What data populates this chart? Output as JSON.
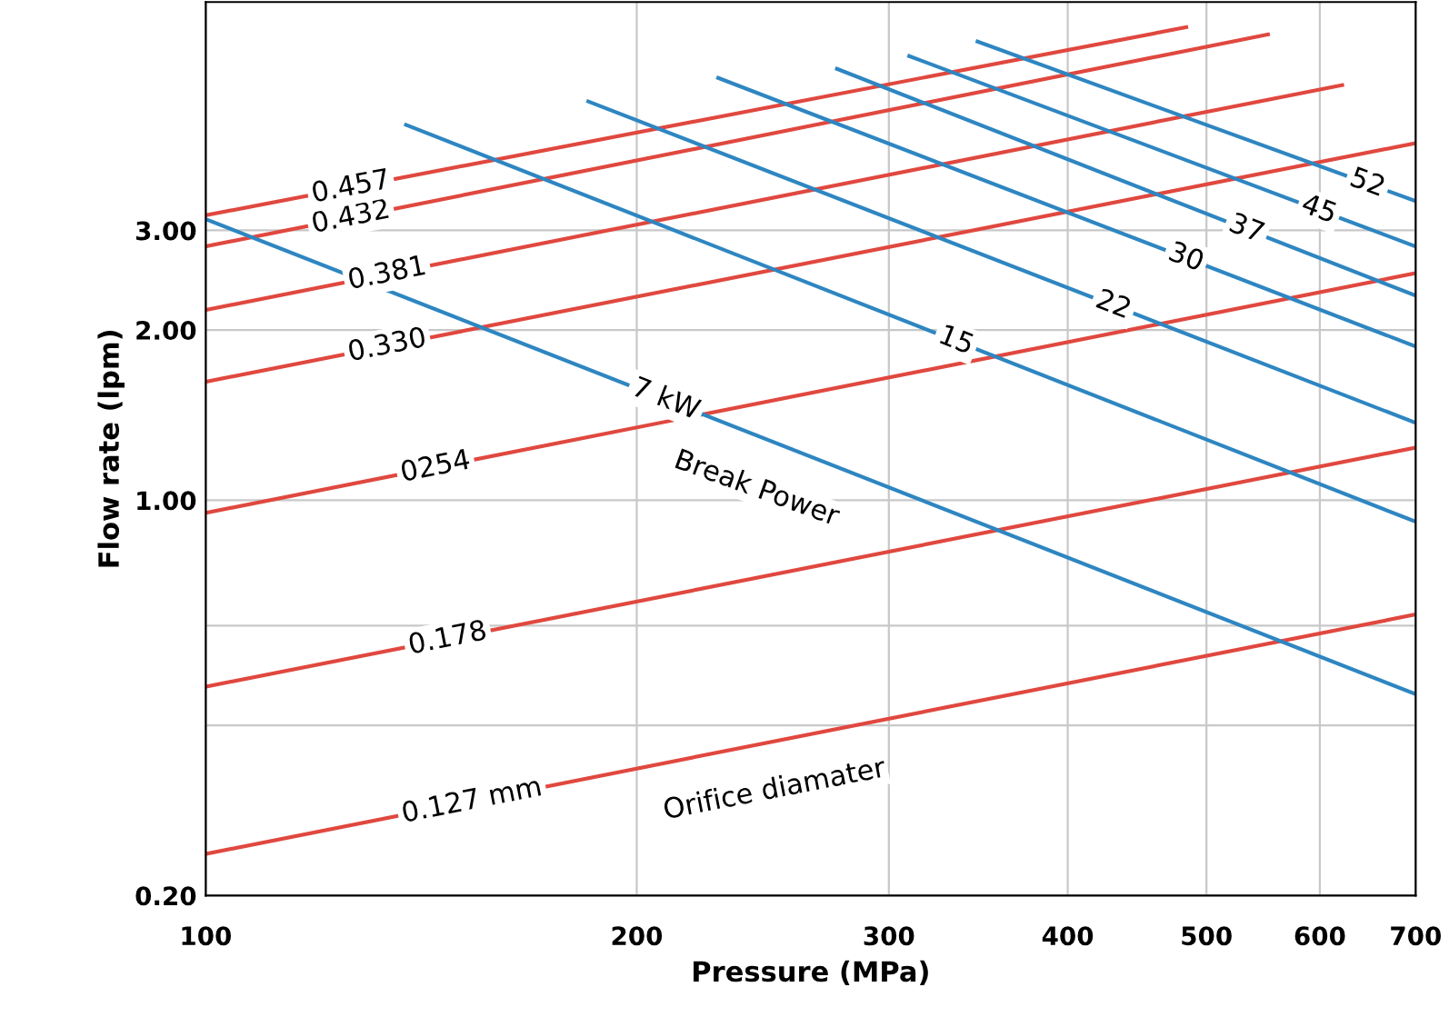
{
  "chart_data": {
    "type": "line",
    "xlabel": "Pressure (MPa)",
    "ylabel": "Flow rate (lpm)",
    "log": "xy",
    "xlim": [
      100,
      700
    ],
    "ylim": [
      0.2,
      7.6
    ],
    "xticks": [
      100,
      200,
      300,
      400,
      500,
      600,
      700
    ],
    "yticks": [
      {
        "value": 0.2,
        "label": "0.20"
      },
      {
        "value": 0.4,
        "label": null
      },
      {
        "value": 0.6,
        "label": null
      },
      {
        "value": 1,
        "label": "1.00"
      },
      {
        "value": 2,
        "label": "2.00"
      },
      {
        "value": 3,
        "label": "3.00"
      }
    ],
    "grid": true,
    "legend": false,
    "marker": "none",
    "line_style": "solid",
    "series": [
      {
        "name": "0.127 mm",
        "color": "#e0483f",
        "x": [
          100,
          700
        ],
        "values": [
          0.237,
          0.628
        ]
      },
      {
        "name": "0.178",
        "color": "#e0483f",
        "x": [
          100,
          700
        ],
        "values": [
          0.468,
          1.239
        ]
      },
      {
        "name": "0254",
        "color": "#e0483f",
        "x": [
          100,
          700
        ],
        "values": [
          0.95,
          2.52
        ]
      },
      {
        "name": "0.330",
        "color": "#e0483f",
        "x": [
          100,
          700
        ],
        "values": [
          1.62,
          4.28
        ]
      },
      {
        "name": "0.381",
        "color": "#e0483f",
        "x": [
          100,
          622
        ],
        "values": [
          2.17,
          5.42
        ]
      },
      {
        "name": "0.432",
        "color": "#e0483f",
        "x": [
          100,
          552
        ],
        "values": [
          2.81,
          6.66
        ]
      },
      {
        "name": "0.457",
        "color": "#e0483f",
        "x": [
          100,
          484
        ],
        "values": [
          3.19,
          6.86
        ]
      },
      {
        "name": "7 kW",
        "color": "#2e86c1",
        "x": [
          100,
          700
        ],
        "values": [
          3.14,
          0.454
        ]
      },
      {
        "name": "15",
        "color": "#2e86c1",
        "x": [
          138,
          700
        ],
        "values": [
          4.61,
          0.916
        ]
      },
      {
        "name": "22",
        "color": "#2e86c1",
        "x": [
          185,
          700
        ],
        "values": [
          5.07,
          1.37
        ]
      },
      {
        "name": "30",
        "color": "#2e86c1",
        "x": [
          228,
          700
        ],
        "values": [
          5.58,
          1.87
        ]
      },
      {
        "name": "37",
        "color": "#2e86c1",
        "x": [
          276,
          700
        ],
        "values": [
          5.79,
          2.3
        ]
      },
      {
        "name": "45",
        "color": "#2e86c1",
        "x": [
          310,
          700
        ],
        "values": [
          6.1,
          2.81
        ]
      },
      {
        "name": "52",
        "color": "#2e86c1",
        "x": [
          346,
          700
        ],
        "values": [
          6.47,
          3.38
        ]
      }
    ],
    "annotations": [
      "Break Power",
      "Orifice diamater"
    ]
  }
}
